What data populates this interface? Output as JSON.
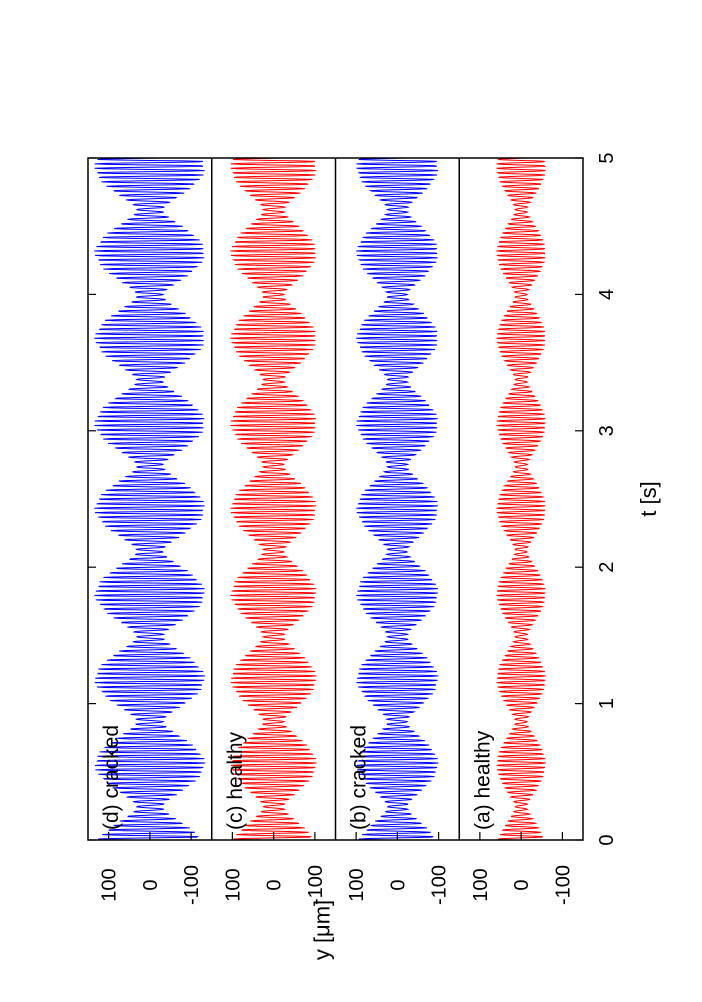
{
  "chart_data": {
    "type": "line",
    "orientation": "rotated-90-ccw",
    "xlabel": "t [s]",
    "ylabel": "y  [μm]",
    "xlim": [
      0,
      5
    ],
    "x_ticks": [
      "0",
      "1",
      "2",
      "3",
      "4",
      "5"
    ],
    "y_ticks": [
      "100",
      "0",
      "-100"
    ],
    "grid": false,
    "panels": [
      {
        "id": "a",
        "label": "(a) healthy",
        "color": "#ff0000",
        "amplitude": 60,
        "ylim": [
          -150,
          150
        ]
      },
      {
        "id": "b",
        "label": "(b) cracked",
        "color": "#0000ff",
        "amplitude": 100,
        "ylim": [
          -150,
          150
        ]
      },
      {
        "id": "c",
        "label": "(c) healthy",
        "color": "#ff0000",
        "amplitude": 105,
        "ylim": [
          -150,
          150
        ]
      },
      {
        "id": "d",
        "label": "(d) cracked",
        "color": "#0000ff",
        "amplitude": 135,
        "ylim": [
          -150,
          150
        ]
      }
    ]
  }
}
